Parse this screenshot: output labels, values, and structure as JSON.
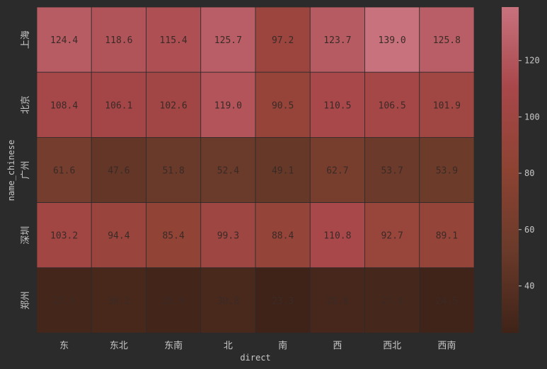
{
  "chart_data": {
    "type": "heatmap",
    "xlabel": "direct",
    "ylabel": "name_chinese",
    "x": [
      "东",
      "东北",
      "东南",
      "北",
      "南",
      "西",
      "西北",
      "西南"
    ],
    "y": [
      "上海",
      "北京",
      "广州",
      "深圳",
      "郑州"
    ],
    "values": [
      [
        124.4,
        118.6,
        115.4,
        125.7,
        97.2,
        123.7,
        139.0,
        125.8
      ],
      [
        108.4,
        106.1,
        102.6,
        119.0,
        90.5,
        110.5,
        106.5,
        101.9
      ],
      [
        61.6,
        47.6,
        51.8,
        52.4,
        49.1,
        62.7,
        53.7,
        53.9
      ],
      [
        103.2,
        94.4,
        85.4,
        99.3,
        88.4,
        110.8,
        92.7,
        89.1
      ],
      [
        27.5,
        30.2,
        25.9,
        30.8,
        23.3,
        28.8,
        27.8,
        24.5
      ]
    ],
    "colorbar": {
      "ticks": [
        40,
        60,
        80,
        100,
        120
      ],
      "range": [
        23.3,
        139.0
      ]
    },
    "colormap": [
      "#3f2318",
      "#6a3a2a",
      "#8d4332",
      "#a8474a",
      "#c8727e"
    ],
    "annotation_color": "#3a2a26",
    "label_color": "#c8c8c8",
    "grid": false
  }
}
